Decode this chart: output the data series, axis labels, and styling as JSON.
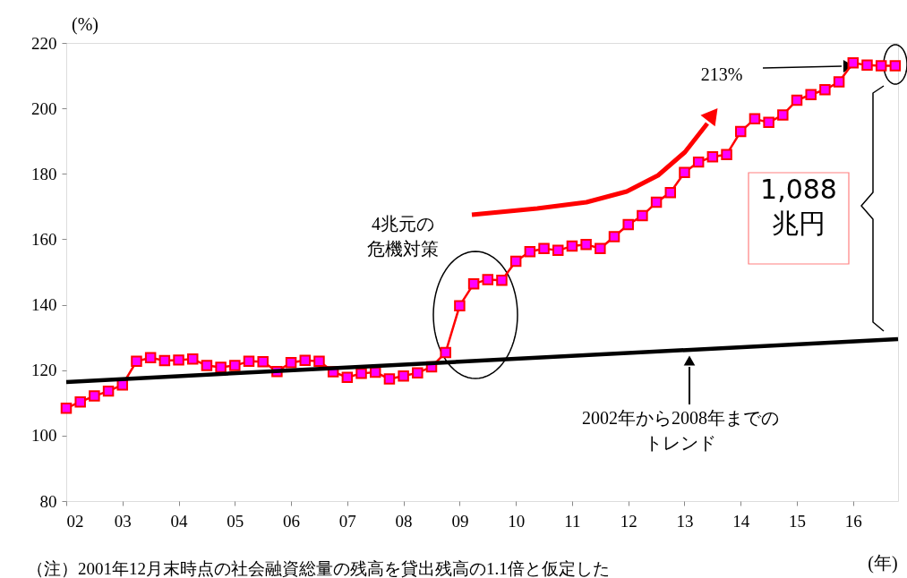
{
  "chart_data": {
    "type": "line",
    "xlabel": "(年)",
    "ylabel": "(%)",
    "x": [
      2,
      2.25,
      2.5,
      2.75,
      3,
      3.25,
      3.5,
      3.75,
      4,
      4.25,
      4.5,
      4.75,
      5,
      5.25,
      5.5,
      5.75,
      6,
      6.25,
      6.5,
      6.75,
      7,
      7.25,
      7.5,
      7.75,
      8,
      8.25,
      8.5,
      8.75,
      9,
      9.25,
      9.5,
      9.75,
      10,
      10.25,
      10.5,
      10.75,
      11,
      11.25,
      11.5,
      11.75,
      12,
      12.25,
      12.5,
      12.75,
      13,
      13.25,
      13.5,
      13.75,
      14,
      14.25,
      14.5,
      14.75,
      15,
      15.25,
      15.5,
      15.75,
      16,
      16.25,
      16.5,
      16.75
    ],
    "series": [
      {
        "color": "#ff0000",
        "marker": "square",
        "values": [
          108.4,
          110.3,
          112.1,
          113.6,
          115.5,
          122.7,
          123.8,
          122.9,
          123.1,
          123.4,
          121.4,
          120.9,
          121.4,
          122.7,
          122.6,
          119.6,
          122.3,
          123.0,
          122.7,
          119.5,
          117.8,
          119.0,
          119.4,
          117.3,
          118.2,
          119.2,
          121.0,
          125.4,
          139.7,
          146.4,
          147.7,
          147.5,
          153.3,
          156.2,
          157.2,
          156.6,
          157.9,
          158.4,
          157.2,
          160.8,
          164.5,
          167.2,
          171.3,
          174.3,
          180.4,
          183.6,
          185.2,
          185.9,
          192.9,
          196.8,
          195.7,
          198.0,
          202.5,
          204.2,
          205.7,
          208.1,
          213.9,
          213.2,
          213.0,
          213.0
        ]
      },
      {
        "color": "#000000",
        "marker": "none",
        "x": [
          2,
          16.8
        ],
        "values": [
          116.4,
          129.5
        ]
      }
    ],
    "xlim": [
      2,
      16.8
    ],
    "xticks": [
      {
        "value": 2,
        "label": "02"
      },
      {
        "value": 3,
        "label": "03"
      },
      {
        "value": 4,
        "label": "04"
      },
      {
        "value": 5,
        "label": "05"
      },
      {
        "value": 6,
        "label": "06"
      },
      {
        "value": 7,
        "label": "07"
      },
      {
        "value": 8,
        "label": "08"
      },
      {
        "value": 9,
        "label": "09"
      },
      {
        "value": 10,
        "label": "10"
      },
      {
        "value": 11,
        "label": "11"
      },
      {
        "value": 12,
        "label": "12"
      },
      {
        "value": 13,
        "label": "13"
      },
      {
        "value": 14,
        "label": "14"
      },
      {
        "value": 15,
        "label": "15"
      },
      {
        "value": 16,
        "label": "16"
      }
    ],
    "ylim": [
      80,
      220
    ],
    "yticks": [
      80,
      100,
      120,
      140,
      160,
      180,
      200,
      220
    ],
    "grid": false,
    "annotations": [
      "213%",
      "4兆元の危機対策",
      "1,088兆円",
      "2002年から2008年までのトレンド",
      "（注）2001年12月末時点の社会融資総量の残高を貸出残高の1.1倍と仮定した"
    ]
  }
}
